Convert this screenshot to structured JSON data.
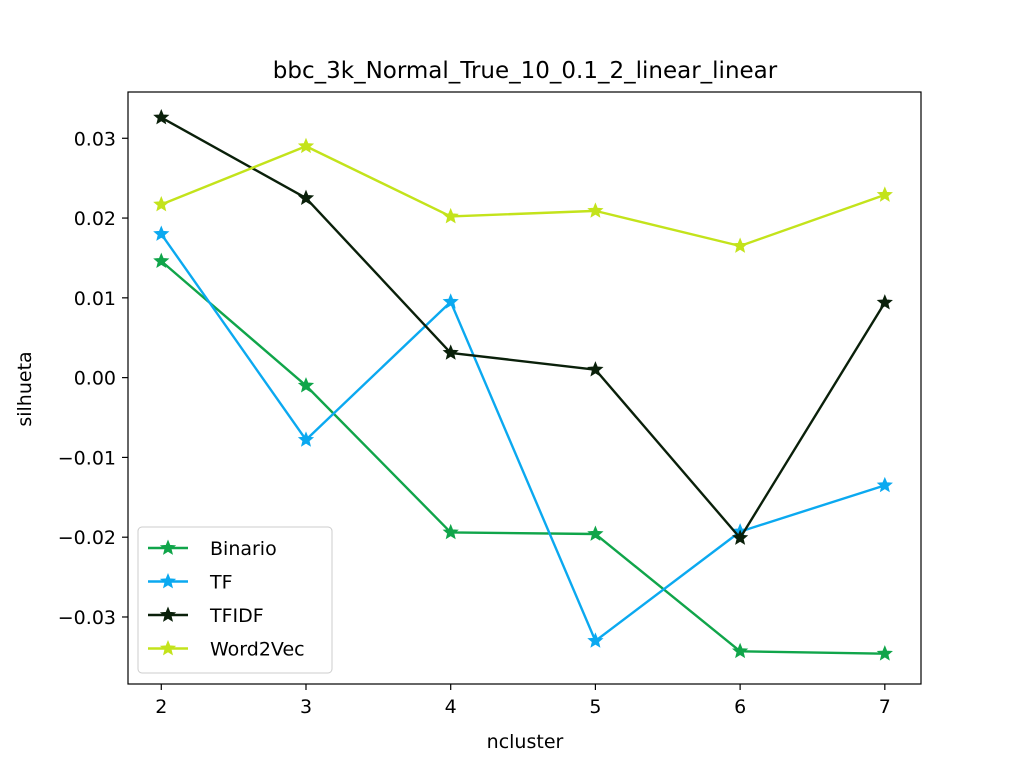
{
  "chart_data": {
    "type": "line",
    "title": "bbc_3k_Normal_True_10_0.1_2_linear_linear",
    "xlabel": "ncluster",
    "ylabel": "silhueta",
    "x": [
      2,
      3,
      4,
      5,
      6,
      7
    ],
    "xlim": [
      1.77,
      7.25
    ],
    "ylim": [
      -0.0384,
      0.0358
    ],
    "x_ticks": [
      2,
      3,
      4,
      5,
      6,
      7
    ],
    "x_tick_labels": [
      "2",
      "3",
      "4",
      "5",
      "6",
      "7"
    ],
    "y_ticks": [
      0.03,
      0.02,
      0.01,
      0.0,
      -0.01,
      -0.02,
      -0.03
    ],
    "y_tick_labels": [
      "0.03",
      "0.02",
      "0.01",
      "0.00",
      "−0.01",
      "−0.02",
      "−0.03"
    ],
    "grid": false,
    "legend_position": "lower-left",
    "marker": "star",
    "series": [
      {
        "name": "Binario",
        "color": "#10a54a",
        "values": [
          0.0146,
          -0.001,
          -0.0194,
          -0.0196,
          -0.0343,
          -0.0346
        ]
      },
      {
        "name": "TF",
        "color": "#0ba9f0",
        "values": [
          0.018,
          -0.0078,
          0.0095,
          -0.033,
          -0.0193,
          -0.0135
        ]
      },
      {
        "name": "TFIDF",
        "color": "#0a200a",
        "values": [
          0.0326,
          0.0225,
          0.0031,
          0.001,
          -0.0201,
          0.0094
        ]
      },
      {
        "name": "Word2Vec",
        "color": "#c3e31b",
        "values": [
          0.0217,
          0.029,
          0.0202,
          0.0209,
          0.0165,
          0.0229
        ]
      }
    ]
  }
}
